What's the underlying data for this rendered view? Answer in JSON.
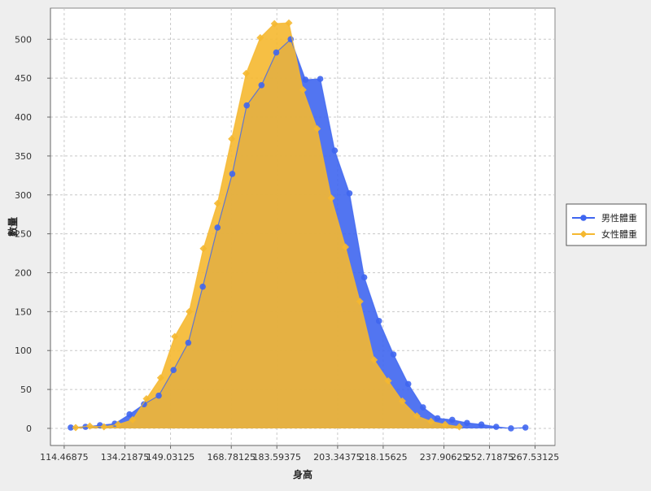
{
  "chart_data": {
    "type": "area",
    "xlabel": "身高",
    "ylabel": "數量",
    "xlim": [
      110.0,
      274.0
    ],
    "ylim": [
      -22,
      540
    ],
    "x_ticks": [
      114.46875,
      134.21875,
      149.03125,
      168.78125,
      183.59375,
      203.34375,
      218.15625,
      237.90625,
      252.71875,
      267.53125
    ],
    "x_tick_labels": [
      "114.46875",
      "134.21875",
      "149.03125",
      "168.78125",
      "183.59375",
      "203.34375",
      "218.15625",
      "237.90625",
      "252.71875",
      "267.53125"
    ],
    "y_ticks": [
      0,
      50,
      100,
      150,
      200,
      250,
      300,
      350,
      400,
      450,
      500
    ],
    "y_tick_labels": [
      "0",
      "50",
      "100",
      "150",
      "200",
      "250",
      "300",
      "350",
      "400",
      "450",
      "500"
    ],
    "grid": true,
    "legend_position": "right",
    "series": [
      {
        "name": "男性體重",
        "color": "#3f66f0",
        "marker": "circle",
        "points": [
          [
            116.6,
            1
          ],
          [
            121.4,
            2
          ],
          [
            126.1,
            4
          ],
          [
            130.9,
            6
          ],
          [
            135.7,
            18
          ],
          [
            140.4,
            31
          ],
          [
            145.2,
            42
          ],
          [
            150.0,
            75
          ],
          [
            154.8,
            110
          ],
          [
            159.5,
            182
          ],
          [
            164.3,
            258
          ],
          [
            169.1,
            327
          ],
          [
            173.8,
            415
          ],
          [
            178.6,
            441
          ],
          [
            183.4,
            483
          ],
          [
            188.1,
            500
          ],
          [
            192.9,
            448
          ],
          [
            197.7,
            449
          ],
          [
            202.4,
            357
          ],
          [
            207.2,
            302
          ],
          [
            212.0,
            194
          ],
          [
            216.8,
            138
          ],
          [
            221.5,
            95
          ],
          [
            226.3,
            57
          ],
          [
            231.1,
            27
          ],
          [
            235.8,
            13
          ],
          [
            240.6,
            11
          ],
          [
            245.4,
            7
          ],
          [
            250.1,
            5
          ],
          [
            254.9,
            2
          ],
          [
            259.7,
            0
          ],
          [
            264.4,
            1
          ]
        ]
      },
      {
        "name": "女性體重",
        "color": "#f5b830",
        "marker": "diamond",
        "points": [
          [
            118.2,
            1
          ],
          [
            122.8,
            3
          ],
          [
            127.4,
            2
          ],
          [
            132.0,
            5
          ],
          [
            136.7,
            11
          ],
          [
            141.2,
            38
          ],
          [
            145.8,
            65
          ],
          [
            150.4,
            118
          ],
          [
            155.1,
            150
          ],
          [
            159.7,
            231
          ],
          [
            164.3,
            289
          ],
          [
            168.9,
            372
          ],
          [
            173.6,
            456
          ],
          [
            178.2,
            502
          ],
          [
            182.8,
            520
          ],
          [
            187.5,
            521
          ],
          [
            192.1,
            435
          ],
          [
            196.7,
            385
          ],
          [
            201.3,
            296
          ],
          [
            205.9,
            233
          ],
          [
            210.6,
            163
          ],
          [
            215.2,
            88
          ],
          [
            219.8,
            61
          ],
          [
            224.4,
            35
          ],
          [
            229.1,
            16
          ],
          [
            233.7,
            9
          ],
          [
            238.3,
            5
          ],
          [
            242.9,
            2
          ]
        ]
      }
    ]
  }
}
